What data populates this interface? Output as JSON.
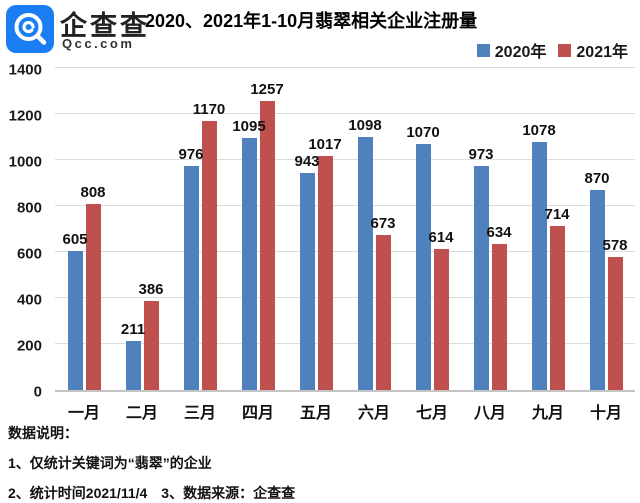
{
  "header": {
    "brand": {
      "name": "企查查",
      "domain": "Qcc.com"
    },
    "title": "2020、2021年1-10月翡翠相关企业注册量"
  },
  "legend": {
    "items": [
      {
        "label": "2020年",
        "color": "#4F81BD"
      },
      {
        "label": "2021年",
        "color": "#C0504D"
      }
    ]
  },
  "chart_data": {
    "type": "bar",
    "title": "2020、2021年1-10月翡翠相关企业注册量",
    "categories": [
      "一月",
      "二月",
      "三月",
      "四月",
      "五月",
      "六月",
      "七月",
      "八月",
      "九月",
      "十月"
    ],
    "series": [
      {
        "name": "2020年",
        "color": "#4F81BD",
        "values": [
          605,
          211,
          976,
          1095,
          943,
          1098,
          1070,
          973,
          1078,
          870
        ]
      },
      {
        "name": "2021年",
        "color": "#C0504D",
        "values": [
          808,
          386,
          1170,
          1257,
          1017,
          673,
          614,
          634,
          714,
          578
        ]
      }
    ],
    "xlabel": "",
    "ylabel": "",
    "ylim": [
      0,
      1400
    ],
    "yticks": [
      0,
      200,
      400,
      600,
      800,
      1000,
      1200,
      1400
    ],
    "grid": true,
    "legend_position": "top-right",
    "bar_value_labels": true
  },
  "footnotes": {
    "heading": "数据说明：",
    "line1": "1、仅统计关键词为“翡翠”的企业",
    "line2": "2、统计时间2021/11/4　3、数据来源：企查查"
  },
  "colors": {
    "logo_blue": "#1B7DF2",
    "bar_2020": "#4F81BD",
    "bar_2021": "#C0504D",
    "gridline": "#DCDCDC",
    "axis_line": "#C4C4C4",
    "text": "#1A1A1A"
  }
}
